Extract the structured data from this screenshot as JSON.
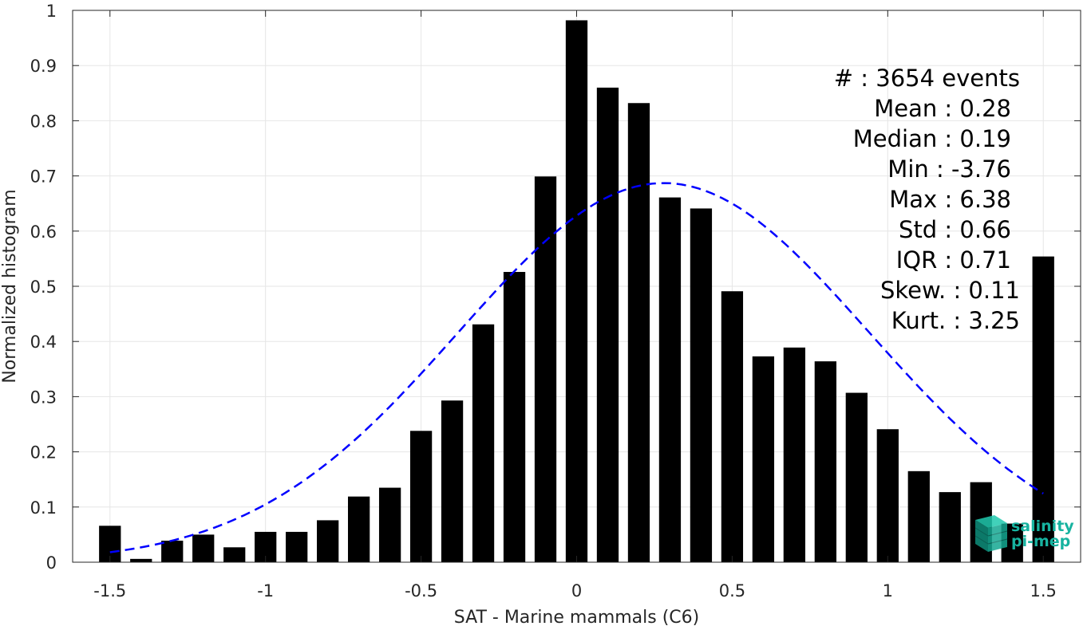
{
  "chart_data": {
    "type": "bar",
    "xlabel": "SAT - Marine mammals (C6)",
    "ylabel": "Normalized histogram",
    "xlim": [
      -1.62,
      1.62
    ],
    "ylim": [
      0,
      1
    ],
    "x_ticks": [
      -1.5,
      -1,
      -0.5,
      0,
      0.5,
      1,
      1.5
    ],
    "x_tick_labels": [
      "-1.5",
      "-1",
      "-0.5",
      "0",
      "0.5",
      "1",
      "1.5"
    ],
    "y_ticks": [
      0,
      0.1,
      0.2,
      0.3,
      0.4,
      0.5,
      0.6,
      0.7,
      0.8,
      0.9,
      1
    ],
    "y_tick_labels": [
      "0",
      "0.1",
      "0.2",
      "0.3",
      "0.4",
      "0.5",
      "0.6",
      "0.7",
      "0.8",
      "0.9",
      "1"
    ],
    "grid": true,
    "bar_color": "#000000",
    "bar_width": 0.07,
    "x": [
      -1.5,
      -1.4,
      -1.3,
      -1.2,
      -1.1,
      -1.0,
      -0.9,
      -0.8,
      -0.7,
      -0.6,
      -0.5,
      -0.4,
      -0.3,
      -0.2,
      -0.1,
      0.0,
      0.1,
      0.2,
      0.3,
      0.4,
      0.5,
      0.6,
      0.7,
      0.8,
      0.9,
      1.0,
      1.1,
      1.2,
      1.3,
      1.4,
      1.5
    ],
    "values": [
      0.066,
      0.006,
      0.039,
      0.05,
      0.027,
      0.055,
      0.055,
      0.076,
      0.119,
      0.135,
      0.238,
      0.293,
      0.431,
      0.526,
      0.699,
      0.982,
      0.86,
      0.832,
      0.661,
      0.641,
      0.491,
      0.373,
      0.389,
      0.364,
      0.307,
      0.241,
      0.165,
      0.127,
      0.145,
      0.07,
      0.554
    ],
    "fit": {
      "type": "gaussian",
      "mean": 0.28,
      "std": 0.66,
      "peak": 0.687,
      "x_range": [
        -1.5,
        1.5
      ],
      "color": "#0000ff",
      "style": "dashed"
    },
    "stats": [
      {
        "label": "#  : 3654 events"
      },
      {
        "label": "Mean : 0.28"
      },
      {
        "label": "Median : 0.19"
      },
      {
        "label": "Min : -3.76"
      },
      {
        "label": "Max : 6.38"
      },
      {
        "label": "Std : 0.66"
      },
      {
        "label": "IQR : 0.71"
      },
      {
        "label": "Skew. : 0.11"
      },
      {
        "label": "Kurt. : 3.25"
      }
    ],
    "logo": {
      "line1": "salinity",
      "line2": "pi-mep",
      "color": "#17b3a0"
    }
  }
}
